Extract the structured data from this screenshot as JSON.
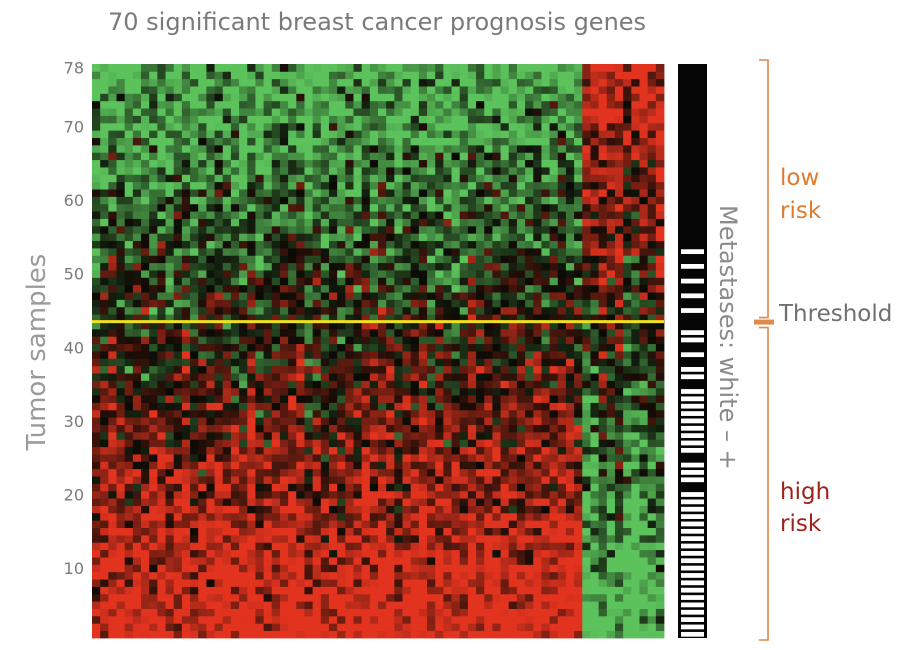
{
  "title": "70 significant breast cancer prognosis genes",
  "chart_data": {
    "type": "heatmap",
    "title": "70 significant breast cancer prognosis genes",
    "xlabel": "",
    "ylabel": "Tumor samples",
    "n_genes": 70,
    "n_samples": 78,
    "y_range": [
      1,
      78
    ],
    "y_ticks": [
      "10",
      "20",
      "30",
      "40",
      "50",
      "60",
      "70",
      "78"
    ],
    "threshold_sample": 44,
    "threshold_label": "Threshold",
    "color_scale": {
      "low": "#5cc35c",
      "mid": "#0a0a05",
      "high": "#e2331f"
    },
    "threshold_color": "#f0e020",
    "side_bar_label": "Metastases: white – +",
    "risk_groups": [
      {
        "label_line1": "low",
        "label_line2": "risk",
        "from_sample": 45,
        "to_sample": 78,
        "color": "#e07a2e"
      },
      {
        "label_line1": "high",
        "label_line2": "risk",
        "from_sample": 1,
        "to_sample": 43,
        "color": "#a0221c"
      }
    ],
    "metastasis_positive_samples": [
      1,
      2,
      3,
      4,
      5,
      6,
      7,
      8,
      9,
      10,
      11,
      12,
      13,
      14,
      15,
      16,
      17,
      18,
      19,
      20,
      22,
      23,
      24,
      26,
      27,
      28,
      29,
      30,
      31,
      32,
      33,
      34,
      36,
      37,
      39,
      41,
      42,
      45,
      47,
      49,
      51,
      53
    ],
    "bracket_color": "#e0894c"
  }
}
